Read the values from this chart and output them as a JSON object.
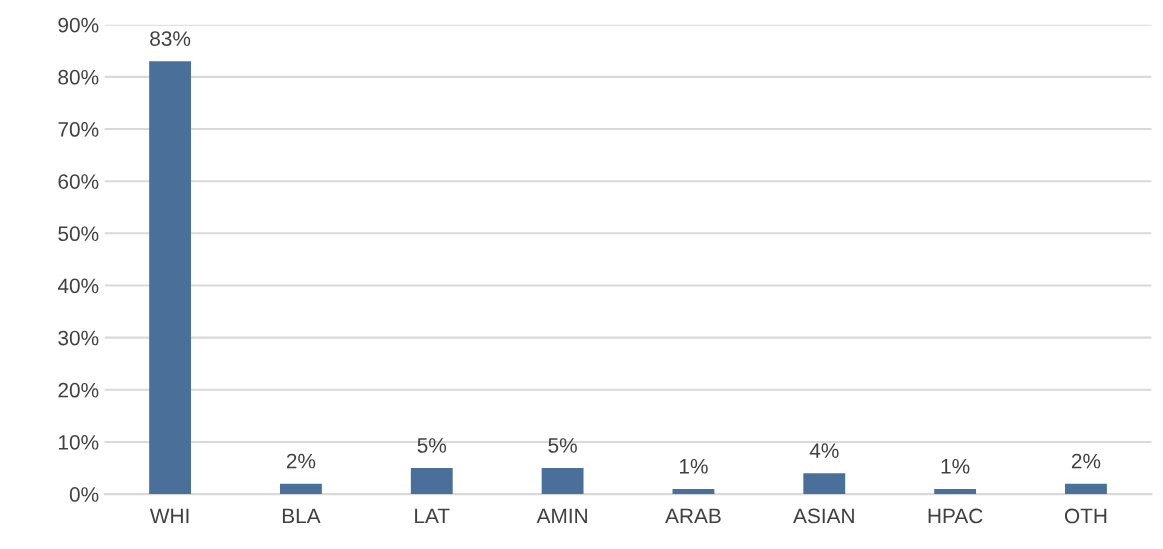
{
  "chart_data": {
    "type": "bar",
    "categories": [
      "WHI",
      "BLA",
      "LAT",
      "AMIN",
      "ARAB",
      "ASIAN",
      "HPAC",
      "OTH"
    ],
    "values": [
      83,
      2,
      5,
      5,
      1,
      4,
      1,
      2
    ],
    "value_labels": [
      "83%",
      "2%",
      "5%",
      "5%",
      "1%",
      "4%",
      "1%",
      "2%"
    ],
    "color": "#4a7099",
    "ylim": [
      0,
      90
    ],
    "yticks": [
      {
        "value": 0,
        "label": "0%"
      },
      {
        "value": 10,
        "label": "10%"
      },
      {
        "value": 20,
        "label": "20%"
      },
      {
        "value": 30,
        "label": "30%"
      },
      {
        "value": 40,
        "label": "40%"
      },
      {
        "value": 50,
        "label": "50%"
      },
      {
        "value": 60,
        "label": "60%"
      },
      {
        "value": 70,
        "label": "70%"
      },
      {
        "value": 80,
        "label": "80%"
      },
      {
        "value": 90,
        "label": "90%"
      }
    ],
    "grid": "y",
    "legend": false
  }
}
